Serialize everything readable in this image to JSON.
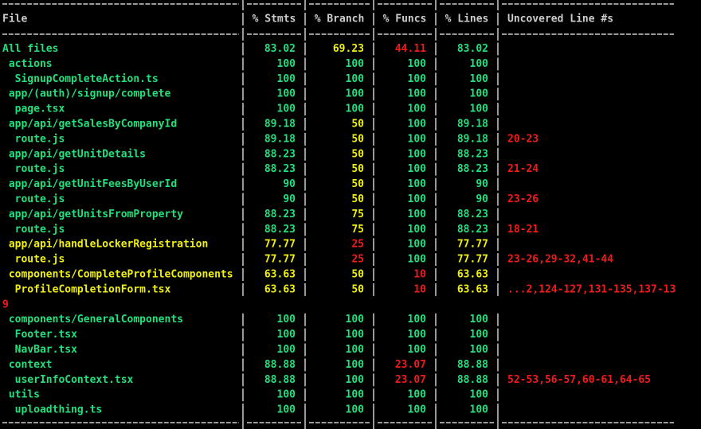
{
  "table": {
    "header": [
      "File",
      "% Stmts",
      "% Branch",
      "% Funcs",
      "% Lines",
      "Uncovered Line #s"
    ],
    "rows": [
      {
        "cells": [
          "All files",
          "83.02",
          "69.23",
          "44.11",
          "83.02"
        ]
      },
      {
        "cells": [
          " actions",
          "100",
          "100",
          "100",
          "100"
        ]
      },
      {
        "cells": [
          "  SignupCompleteAction.ts",
          "100",
          "100",
          "100",
          "100"
        ]
      },
      {
        "cells": [
          " app/(auth)/signup/complete",
          "100",
          "100",
          "100",
          "100"
        ]
      },
      {
        "cells": [
          "  page.tsx",
          "100",
          "100",
          "100",
          "100"
        ]
      },
      {
        "cells": [
          " app/api/getSalesByCompanyId",
          "89.18",
          "50",
          "100",
          "89.18"
        ]
      },
      {
        "cells": [
          "  route.js",
          "89.18",
          "50",
          "100",
          "89.18",
          "20-23"
        ]
      },
      {
        "cells": [
          " app/api/getUnitDetails",
          "88.23",
          "50",
          "100",
          "88.23"
        ]
      },
      {
        "cells": [
          "  route.js",
          "88.23",
          "50",
          "100",
          "88.23",
          "21-24"
        ]
      },
      {
        "cells": [
          " app/api/getUnitFeesByUserId",
          "90",
          "50",
          "100",
          "90"
        ]
      },
      {
        "cells": [
          "  route.js",
          "90",
          "50",
          "100",
          "90",
          "23-26"
        ]
      },
      {
        "cells": [
          " app/api/getUnitsFromProperty",
          "88.23",
          "75",
          "100",
          "88.23"
        ]
      },
      {
        "cells": [
          "  route.js",
          "88.23",
          "75",
          "100",
          "88.23",
          "18-21"
        ]
      },
      {
        "cells": [
          " app/api/handleLockerRegistration",
          "77.77",
          "25",
          "100",
          "77.77"
        ]
      },
      {
        "cells": [
          "  route.js",
          "77.77",
          "25",
          "100",
          "77.77",
          "23-26,29-32,41-44"
        ]
      },
      {
        "cells": [
          " components/CompleteProfileComponents",
          "63.63",
          "50",
          "10",
          "63.63"
        ]
      },
      {
        "cells": [
          "  ProfileCompletionForm.tsx",
          "63.63",
          "50",
          "10",
          "63.63",
          "...2,124-127,131-135,137-13"
        ],
        "wrap": "9"
      },
      {
        "cells": [
          " components/GeneralComponents",
          "100",
          "100",
          "100",
          "100"
        ]
      },
      {
        "cells": [
          "  Footer.tsx",
          "100",
          "100",
          "100",
          "100"
        ]
      },
      {
        "cells": [
          "  NavBar.tsx",
          "100",
          "100",
          "100",
          "100"
        ]
      },
      {
        "cells": [
          " context",
          "88.88",
          "100",
          "23.07",
          "88.88"
        ]
      },
      {
        "cells": [
          "  userInfoContext.tsx",
          "88.88",
          "100",
          "23.07",
          "88.88",
          "52-53,56-57,60-61,64-65"
        ]
      },
      {
        "cells": [
          " utils",
          "100",
          "100",
          "100",
          "100"
        ]
      },
      {
        "cells": [
          "  uploadthing.ts",
          "100",
          "100",
          "100",
          "100"
        ]
      }
    ]
  }
}
